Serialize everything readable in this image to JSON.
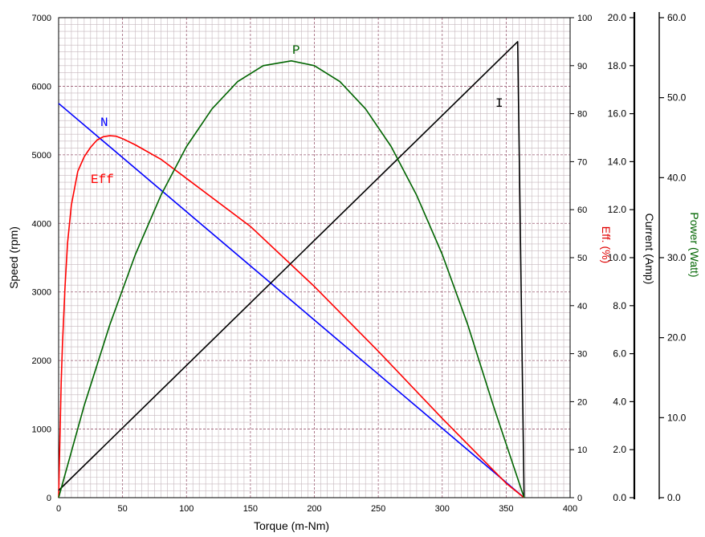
{
  "chart_data": {
    "type": "line",
    "title": "",
    "xlabel": "Torque (m-Nm)",
    "xlim": [
      0,
      400
    ],
    "x_ticks": [
      "0",
      "50",
      "100",
      "150",
      "200",
      "250",
      "300",
      "350",
      "400"
    ],
    "grid": true,
    "axes": {
      "speed": {
        "label": "Speed (rpm)",
        "range": [
          0,
          7000
        ],
        "ticks": [
          "0",
          "1000",
          "2000",
          "3000",
          "4000",
          "5000",
          "6000",
          "7000"
        ],
        "color": "#000000"
      },
      "eff": {
        "label": "Eff. (%)",
        "range": [
          0,
          100
        ],
        "ticks": [
          "0",
          "10",
          "20",
          "30",
          "40",
          "50",
          "60",
          "70",
          "80",
          "90",
          "100"
        ],
        "color": "#e00000"
      },
      "current": {
        "label": "Current (Amp)",
        "range": [
          0,
          20
        ],
        "ticks": [
          "0.0",
          "2.0",
          "4.0",
          "6.0",
          "8.0",
          "10.0",
          "12.0",
          "14.0",
          "16.0",
          "18.0",
          "20.0"
        ],
        "color": "#000000"
      },
      "power": {
        "label": "Power (Watt)",
        "range": [
          0,
          60
        ],
        "ticks": [
          "0.0",
          "10.0",
          "20.0",
          "30.0",
          "40.0",
          "50.0",
          "60.0"
        ],
        "color": "#006400"
      }
    },
    "series": [
      {
        "name": "N",
        "axis": "speed",
        "color": "#0000ff",
        "x": [
          0,
          364
        ],
        "y": [
          5750,
          0
        ]
      },
      {
        "name": "Eff",
        "axis": "eff",
        "color": "#ff0000",
        "x": [
          0,
          1,
          2,
          3,
          5,
          7,
          10,
          15,
          20,
          25,
          30,
          35,
          40,
          45,
          50,
          60,
          80,
          100,
          150,
          200,
          250,
          300,
          350,
          364
        ],
        "y": [
          0,
          12,
          24,
          32,
          44,
          53,
          61,
          68,
          71,
          73,
          74.5,
          75.2,
          75.4,
          75.3,
          74.8,
          73.5,
          70.5,
          66.5,
          56.5,
          44,
          30.5,
          16.5,
          3,
          0
        ]
      },
      {
        "name": "I",
        "axis": "current",
        "color": "#000000",
        "x": [
          0,
          359,
          364
        ],
        "y": [
          0.3,
          19,
          0
        ]
      },
      {
        "name": "P",
        "axis": "power",
        "color": "#006400",
        "x": [
          0,
          20,
          40,
          60,
          80,
          100,
          120,
          140,
          160,
          182,
          200,
          220,
          240,
          260,
          280,
          300,
          320,
          340,
          364
        ],
        "y": [
          0,
          11.5,
          21.6,
          30.4,
          37.8,
          43.9,
          48.6,
          52,
          54,
          54.6,
          54,
          52,
          48.6,
          43.9,
          37.8,
          30.4,
          21.6,
          11.5,
          0
        ]
      }
    ],
    "annotations": {
      "n": "N",
      "eff": "Eff",
      "i": "I",
      "p": "P"
    }
  }
}
